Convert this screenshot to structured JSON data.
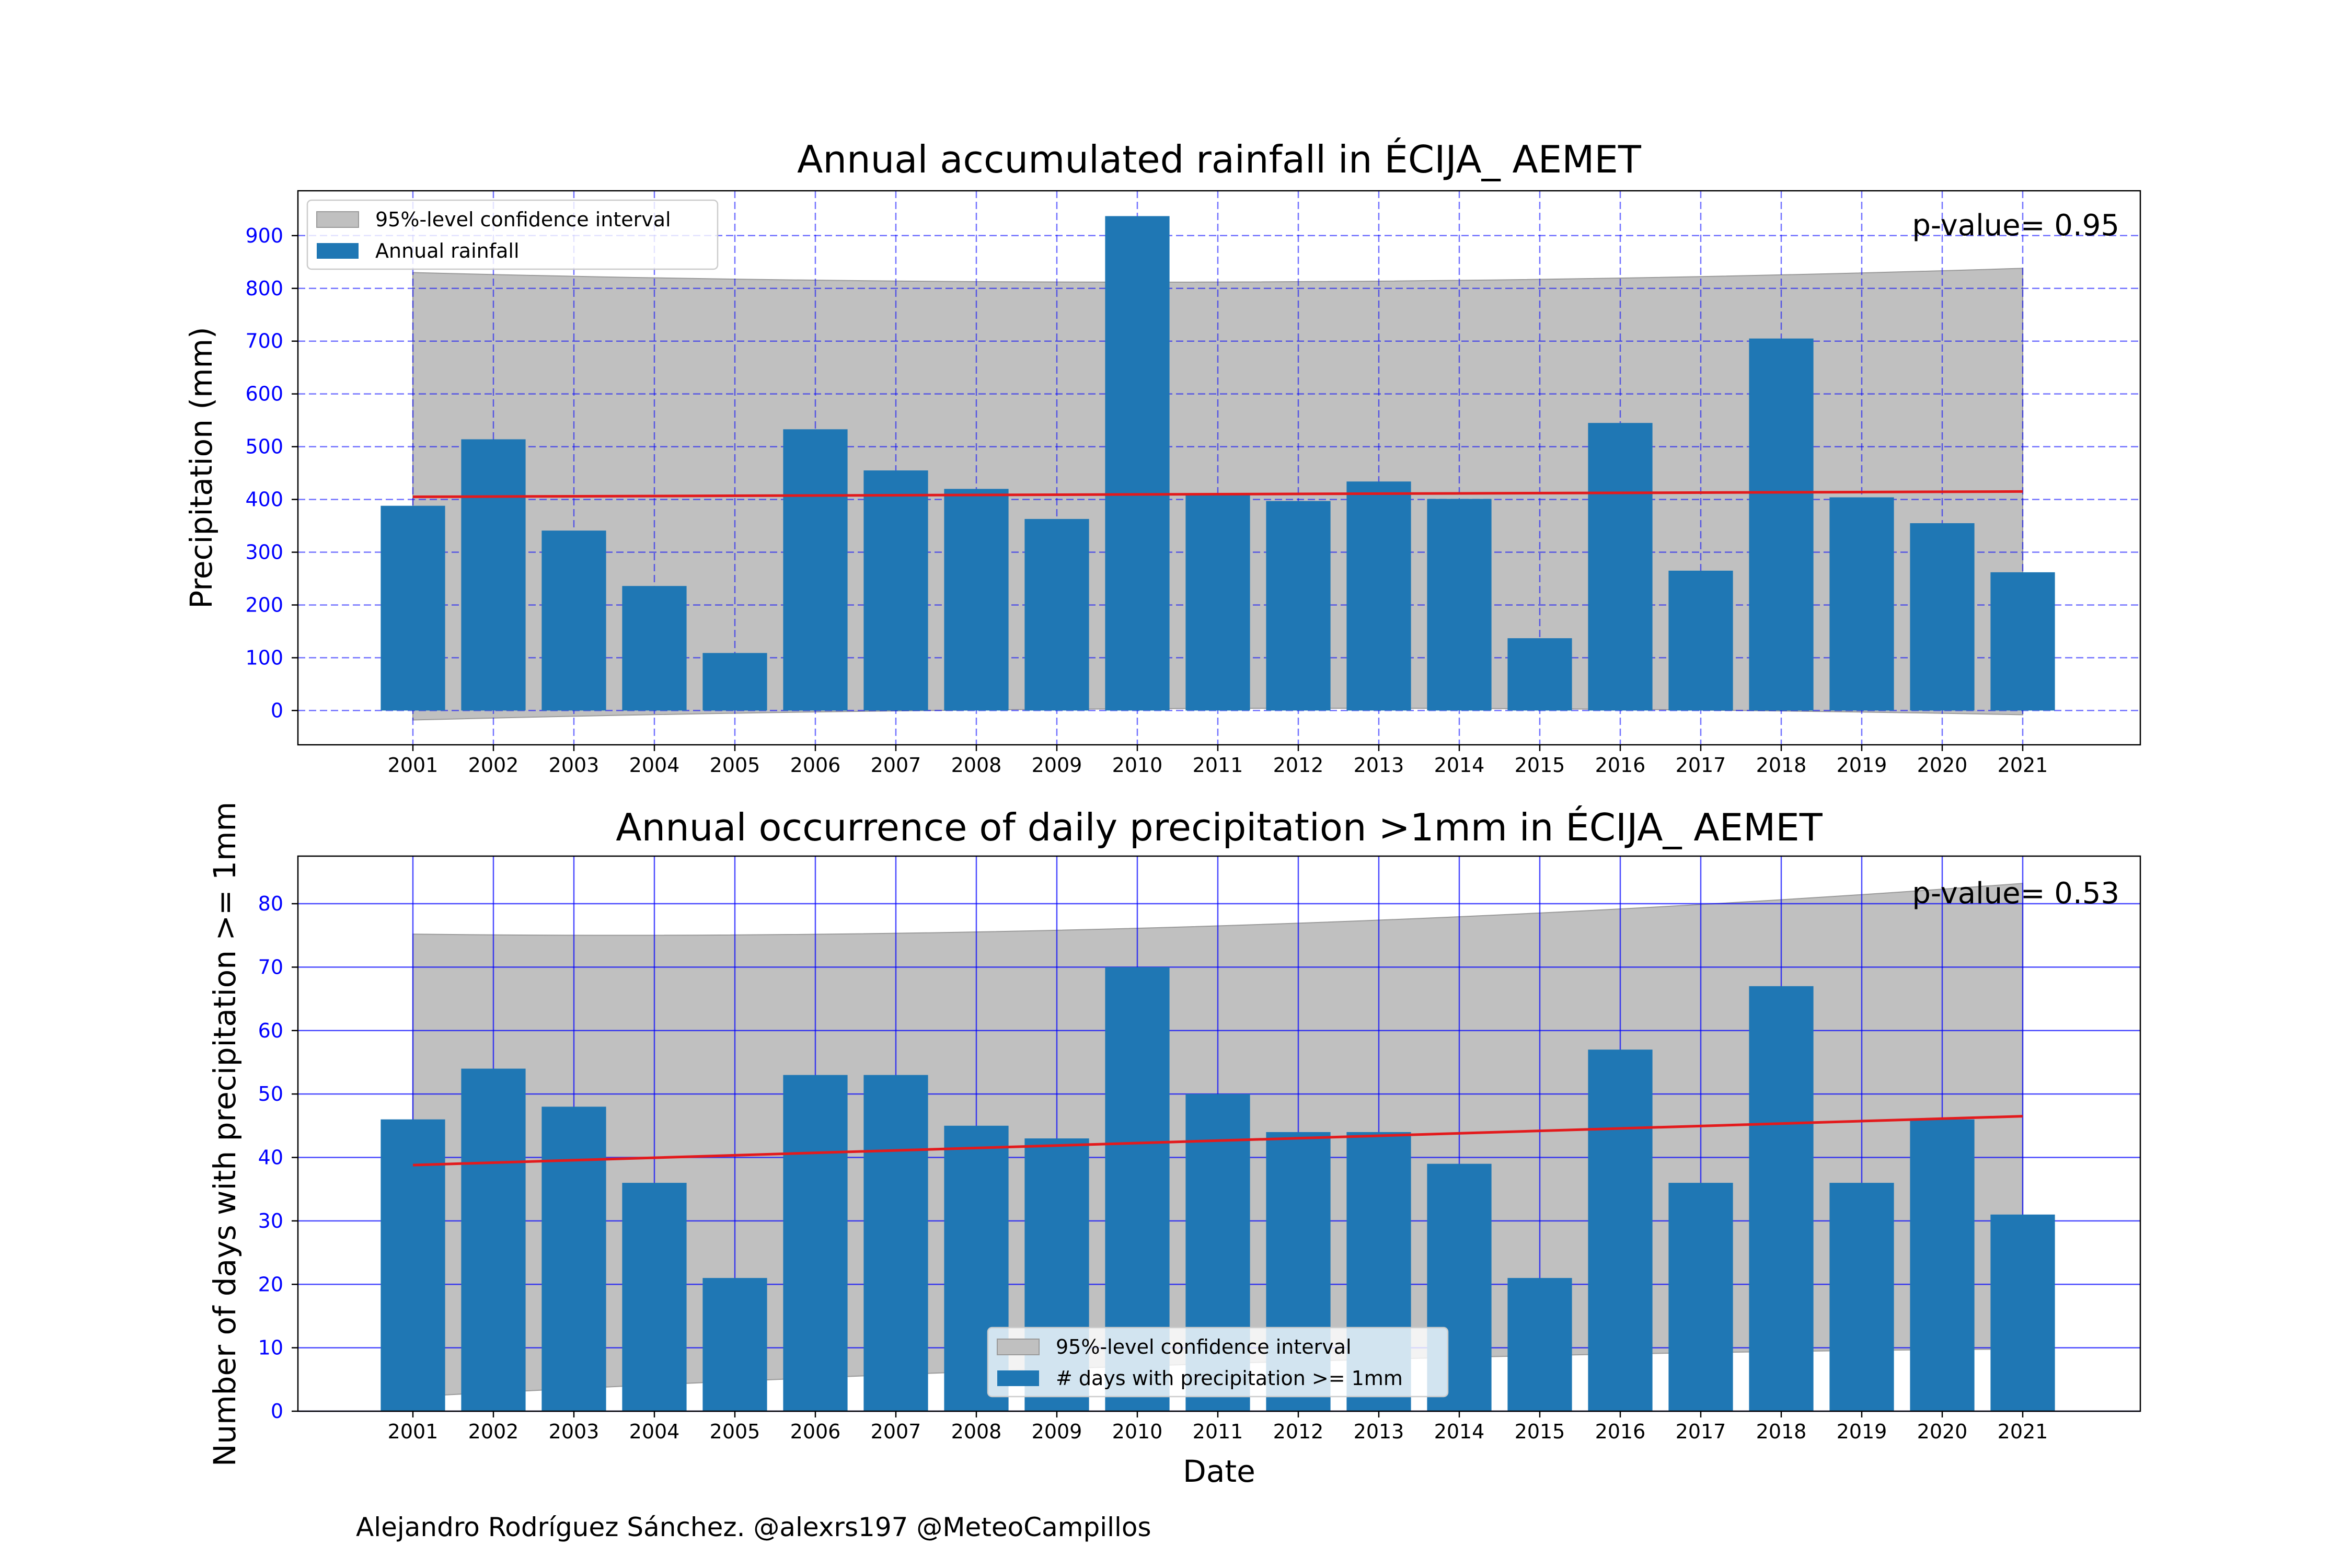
{
  "colors": {
    "bar": "#1f77b4",
    "trend": "#e31a1c",
    "ci_fill": "#c0c0c0",
    "ci_edge": "#9a9a9a",
    "grid": "#0000ff",
    "tick_label": "#0000ff"
  },
  "author": "Alejandro Rodríguez Sánchez. @alexrs197 @MeteoCampillos",
  "chart_data": [
    {
      "type": "bar",
      "title": "Annual accumulated rainfall in ÉCIJA_ AEMET",
      "xlabel": "",
      "ylabel": "Precipitation (mm)",
      "categories": [
        "2001",
        "2002",
        "2003",
        "2004",
        "2005",
        "2006",
        "2007",
        "2008",
        "2009",
        "2010",
        "2011",
        "2012",
        "2013",
        "2014",
        "2015",
        "2016",
        "2017",
        "2018",
        "2019",
        "2020",
        "2021"
      ],
      "series": [
        {
          "name": "Annual rainfall",
          "values": [
            388,
            514,
            341,
            236,
            109,
            533,
            455,
            420,
            363,
            937,
            412,
            397,
            434,
            401,
            137,
            545,
            265,
            705,
            404,
            355,
            262
          ]
        }
      ],
      "trend": {
        "start": 405,
        "end": 415
      },
      "confidence_interval": {
        "label": "95%-level confidence interval",
        "upper": [
          830,
          812,
          838
        ],
        "lower": [
          -18,
          4,
          -8
        ]
      },
      "annotation": "p-value= 0.95",
      "ylim": [
        -65,
        985
      ],
      "yticks": [
        0,
        100,
        200,
        300,
        400,
        500,
        600,
        700,
        800,
        900
      ],
      "grid": "dashed",
      "legend": "top-left"
    },
    {
      "type": "bar",
      "title": "Annual occurrence of daily precipitation >1mm in ÉCIJA_ AEMET",
      "xlabel": "Date",
      "ylabel": "Number of days with precipitation >= 1mm",
      "categories": [
        "2001",
        "2002",
        "2003",
        "2004",
        "2005",
        "2006",
        "2007",
        "2008",
        "2009",
        "2010",
        "2011",
        "2012",
        "2013",
        "2014",
        "2015",
        "2016",
        "2017",
        "2018",
        "2019",
        "2020",
        "2021"
      ],
      "series": [
        {
          "name": "# days with precipitation >= 1mm",
          "values": [
            46,
            54,
            48,
            36,
            21,
            53,
            53,
            45,
            43,
            70,
            50,
            44,
            44,
            39,
            21,
            57,
            36,
            67,
            36,
            46,
            31
          ]
        }
      ],
      "trend": {
        "start": 38.8,
        "end": 46.5
      },
      "confidence_interval": {
        "label": "95%-level confidence interval",
        "upper": [
          75.2,
          76.5,
          83.2
        ],
        "lower": [
          2.3,
          7.5,
          9.8
        ]
      },
      "annotation": "p-value= 0.53",
      "ylim": [
        0,
        87.5
      ],
      "yticks": [
        0,
        10,
        20,
        30,
        40,
        50,
        60,
        70,
        80
      ],
      "grid": "solid",
      "legend": "bottom-center"
    }
  ]
}
